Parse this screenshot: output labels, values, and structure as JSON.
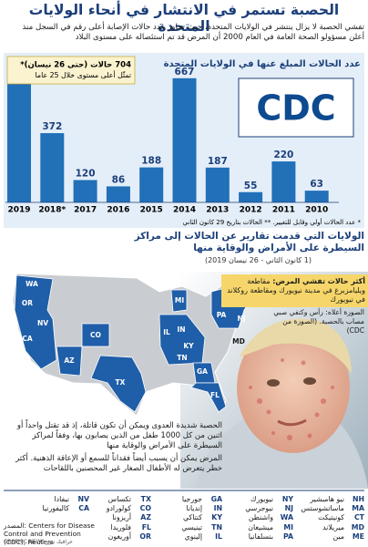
{
  "header": {
    "title": "الحصبة تستمر في الانتشار في أنحاء الولايات المتحدة",
    "intro": "تفشي الحصبة لا يزال ينتشر في الولايات المتحدة، حيث تجاوز عدد حالات الإصابة أعلى رقم في السجل منذ أعلن مسؤولو الصحة العامة في العام 2000 أن المرض قد تم استئصاله على مستوى البلاد"
  },
  "chart_data": {
    "type": "bar",
    "title": "عدد الحالات المبلغ عنها في الولايات المتحدة",
    "categories": [
      "2019",
      "2018*",
      "2017",
      "2016",
      "2015",
      "2014",
      "2013",
      "2012",
      "2011",
      "2010"
    ],
    "values": [
      704,
      372,
      120,
      86,
      188,
      667,
      187,
      55,
      220,
      63
    ],
    "color": "#2170b8",
    "ylim": [
      0,
      720
    ],
    "annotation": [
      "704 حالات (حتى 26 نيسان)*",
      "تمثّل أعلى مستوى خلال 25 عاما"
    ],
    "footnote": "* عدد الحالات أولي وقابل للتغيير. ** الحالات بتاريخ 29 كانون الثاني",
    "logo": "CDC"
  },
  "map": {
    "title": "الولايات التي قدمت تقارير عن الحالات إلى مراكز السيطرة على الأمراض والوقاية منها",
    "dates": "(1 كانون الثاني - 26 نيسان 2019)"
  },
  "outbreak": {
    "title": "أكثر حالات تفشي المرض:",
    "text": "مقاطعة ويليامزبرغ في مدينة نيويورك ومقاطعة روكلاند في نيويورك"
  },
  "photo_caption": "الصورة أعلاه: رأس وكتفي صبي مصاب بالحصبة. (الصورة من CDC)",
  "body": [
    "الحصبة شديدة العدوى ويمكن أن تكون قاتلة، إذ قد تقتل واحداً أو اثنين من كل 1000 طفل من الذين يصابون بها، وفقاً لمراكز السيطرة على الأمراض والوقاية منها",
    "المرض يمكن أن يسبب أيضاً فقداناً للسمع أو الإعاقة الذهنية. أكثر خطر يتعرض له الأطفال الصغار غير المحصنين باللقاحات"
  ],
  "states": [
    {
      "code": "NH",
      "name": "نيو هامبشير"
    },
    {
      "code": "MA",
      "name": "ماساتشوستس"
    },
    {
      "code": "CT",
      "name": "كونيتيكت"
    },
    {
      "code": "MD",
      "name": "ميريلاند"
    },
    {
      "code": "ME",
      "name": "مين"
    },
    {
      "code": "NY",
      "name": "نيويورك"
    },
    {
      "code": "NJ",
      "name": "نيوجرسي"
    },
    {
      "code": "WA",
      "name": "واشنطن"
    },
    {
      "code": "MI",
      "name": "ميشيغان"
    },
    {
      "code": "PA",
      "name": "بنسلفانيا"
    },
    {
      "code": "GA",
      "name": "جورجيا"
    },
    {
      "code": "IN",
      "name": "إنديانا"
    },
    {
      "code": "KY",
      "name": "كنتاكي"
    },
    {
      "code": "TN",
      "name": "تينيسي"
    },
    {
      "code": "IL",
      "name": "إلينوي"
    },
    {
      "code": "TX",
      "name": "تكساس"
    },
    {
      "code": "CO",
      "name": "كولورادو"
    },
    {
      "code": "AZ",
      "name": "أريزونا"
    },
    {
      "code": "FL",
      "name": "فلوريدا"
    },
    {
      "code": "OR",
      "name": "أوريغون"
    },
    {
      "code": "NV",
      "name": "نيفادا"
    },
    {
      "code": "CA",
      "name": "كاليفورنيا"
    }
  ],
  "footer": {
    "source": "المصدر: Centers for Disease Control and Prevention (CDC), Reuters",
    "credit": "GRAPHIC NEWS جرافيك نيوز"
  }
}
